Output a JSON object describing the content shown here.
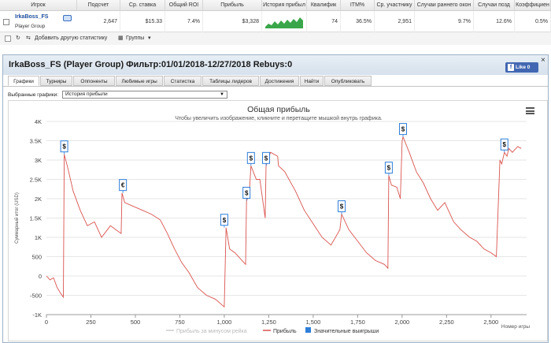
{
  "stats": {
    "columns": [
      "Игрок",
      "Подсчет",
      "Ср. ставка",
      "Общий ROI",
      "Прибыль",
      "История прибыл",
      "Квалифик",
      "ITM%",
      "Ср. участнику",
      "Случаи раннего окон",
      "Случаи позд",
      "Коэффициен"
    ],
    "row": {
      "player_name": "IrkaBoss_FS",
      "player_group": "Player Group",
      "count": "2,647",
      "avg_stake": "$15.33",
      "roi": "7.4%",
      "profit": "$3,328",
      "qualif": "74",
      "itm": "36.5%",
      "avg_entrants": "2,951",
      "early_finish": "9.7%",
      "late_finish": "12.6%",
      "coef": "0.5%"
    },
    "toolbar": {
      "add_stats": "Добавить другую статистику",
      "groups": "Группы"
    }
  },
  "panel": {
    "title": "IrkaBoss_FS (Player Group) Фильтр:01/01/2018-12/27/2018 Rebuys:0",
    "like_label": "Like 0",
    "close": "×",
    "tabs": [
      "Графики",
      "Турниры",
      "Оппоненты",
      "Любимые игры",
      "Статистка",
      "Таблицы лидеров",
      "Достижения",
      "Найти",
      "Опубликовать"
    ],
    "active_tab": "Графики",
    "select_label": "Выбранные графики:",
    "select_value": "История прибыли"
  },
  "colors": {
    "accent": "#1f4e9c",
    "profit_line": "#d9534f",
    "rake_line": "#cccccc",
    "wins_marker": "#2f7ed8",
    "sparkline": "#3aa64a"
  },
  "chart_data": {
    "type": "line",
    "title": "Общая прибыль",
    "subtitle": "Чтобы увеличить изображение, кликните и перетащите мышкой внутрь графика.",
    "xlabel": "Номер игры",
    "ylabel": "Суммарный итог (USD)",
    "xlim": [
      0,
      2700
    ],
    "ylim": [
      -1000,
      4000
    ],
    "x_ticks": [
      0,
      250,
      500,
      750,
      1000,
      1250,
      1500,
      1750,
      2000,
      2250,
      2500
    ],
    "x_tick_labels": [
      "0",
      "250",
      "500",
      "750",
      "1,000",
      "1,250",
      "1,500",
      "1,750",
      "2,000",
      "2,250",
      "2,500"
    ],
    "y_ticks": [
      -1000,
      -500,
      0,
      500,
      1000,
      1500,
      2000,
      2500,
      3000,
      3500,
      4000
    ],
    "y_tick_labels": [
      "-1K",
      "-500",
      "0",
      "500",
      "1K",
      "1.5K",
      "2K",
      "2.5K",
      "3K",
      "3.5K",
      "4K"
    ],
    "legend": [
      "Прибыль за минусом рейка",
      "Прибыль",
      "Значительные выигрыши"
    ],
    "legend_position": "bottom",
    "series": [
      {
        "name": "Прибыль",
        "x": [
          0,
          20,
          40,
          60,
          80,
          95,
          100,
          120,
          150,
          190,
          230,
          270,
          310,
          360,
          390,
          420,
          425,
          440,
          490,
          540,
          590,
          640,
          680,
          720,
          760,
          800,
          850,
          900,
          950,
          1000,
          1010,
          1030,
          1060,
          1100,
          1120,
          1125,
          1140,
          1150,
          1180,
          1200,
          1230,
          1235,
          1260,
          1300,
          1305,
          1340,
          1400,
          1450,
          1500,
          1550,
          1600,
          1650,
          1660,
          1700,
          1750,
          1800,
          1850,
          1900,
          1920,
          1925,
          1940,
          1970,
          1990,
          2000,
          2005,
          2040,
          2080,
          2120,
          2160,
          2200,
          2240,
          2290,
          2330,
          2380,
          2420,
          2460,
          2500,
          2530,
          2550,
          2560,
          2575,
          2590,
          2600,
          2620,
          2650,
          2670
        ],
        "values": [
          0,
          -100,
          -50,
          -300,
          -450,
          -550,
          3150,
          2800,
          2200,
          1700,
          1300,
          1400,
          1000,
          1300,
          1200,
          1100,
          2150,
          1900,
          1800,
          1700,
          1600,
          1450,
          1100,
          700,
          350,
          100,
          -300,
          -500,
          -600,
          -800,
          1250,
          700,
          600,
          400,
          300,
          1950,
          2100,
          2850,
          2500,
          2500,
          1500,
          2850,
          3200,
          3100,
          2850,
          2700,
          2200,
          1700,
          1350,
          1000,
          800,
          1200,
          1600,
          1200,
          900,
          600,
          400,
          300,
          200,
          2600,
          2350,
          2300,
          2000,
          3500,
          3600,
          3200,
          2700,
          2400,
          2000,
          1700,
          1900,
          1400,
          1200,
          1000,
          900,
          700,
          600,
          500,
          3000,
          2900,
          3200,
          3100,
          3300,
          3200,
          3350,
          3300
        ]
      }
    ],
    "big_wins": [
      {
        "x": 100,
        "y": 3150,
        "label": "$"
      },
      {
        "x": 430,
        "y": 2150,
        "label": "€"
      },
      {
        "x": 1000,
        "y": 1250,
        "label": "$"
      },
      {
        "x": 1125,
        "y": 1950,
        "label": "$"
      },
      {
        "x": 1150,
        "y": 2850,
        "label": "$"
      },
      {
        "x": 1235,
        "y": 2850,
        "label": "$"
      },
      {
        "x": 1660,
        "y": 1600,
        "label": "$"
      },
      {
        "x": 1925,
        "y": 2600,
        "label": "$"
      },
      {
        "x": 2005,
        "y": 3600,
        "label": "$"
      },
      {
        "x": 2575,
        "y": 3200,
        "label": "$"
      }
    ]
  }
}
